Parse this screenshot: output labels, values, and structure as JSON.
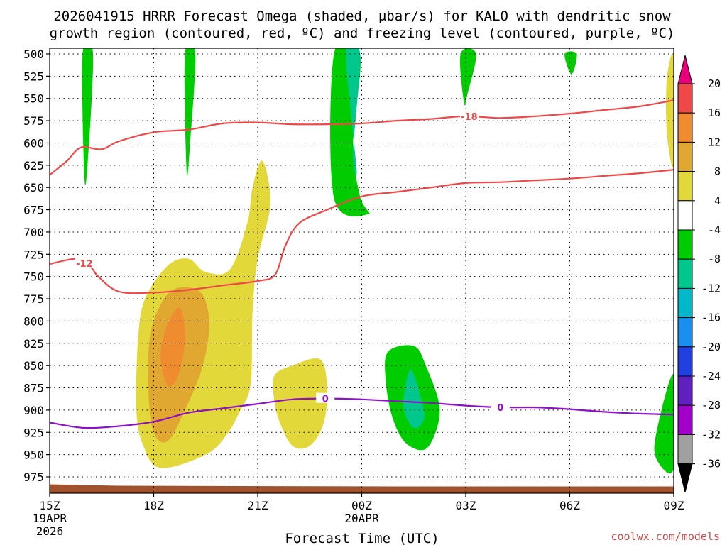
{
  "chart_data": {
    "type": "time-height contour",
    "title_line1": "2026041915 HRRR Forecast Omega (shaded, μbar/s) for KALO with dendritic snow",
    "title_line2": "growth region (contoured, red, ºC) and freezing level (contoured, purple, ºC)",
    "xlabel": "Forecast Time (UTC)",
    "credit": "coolwx.com/models",
    "x_range_hours": [
      0,
      18
    ],
    "x_ticks": [
      {
        "hour": 0,
        "label": "15Z",
        "sub1": "19APR",
        "sub2": "2026"
      },
      {
        "hour": 3,
        "label": "18Z",
        "sub1": "",
        "sub2": ""
      },
      {
        "hour": 6,
        "label": "21Z",
        "sub1": "",
        "sub2": ""
      },
      {
        "hour": 9,
        "label": "00Z",
        "sub1": "20APR",
        "sub2": ""
      },
      {
        "hour": 12,
        "label": "03Z",
        "sub1": "",
        "sub2": ""
      },
      {
        "hour": 15,
        "label": "06Z",
        "sub1": "",
        "sub2": ""
      },
      {
        "hour": 18,
        "label": "09Z",
        "sub1": "",
        "sub2": ""
      }
    ],
    "y_range_mb": [
      500,
      985
    ],
    "y_ticks": [
      "500",
      "525",
      "550",
      "575",
      "600",
      "625",
      "650",
      "675",
      "700",
      "725",
      "750",
      "775",
      "800",
      "825",
      "850",
      "875",
      "900",
      "925",
      "950",
      "975"
    ],
    "colorbar": {
      "levels": [
        "20",
        "16",
        "12",
        "8",
        "4",
        "-4",
        "-8",
        "-12",
        "-16",
        "-20",
        "-24",
        "-28",
        "-32",
        "-36"
      ],
      "colors": [
        "#e8007a",
        "#f04848",
        "#f08c30",
        "#e0a830",
        "#e2d83a",
        "#ffffff",
        "#00cc00",
        "#00c88c",
        "#00b8c8",
        "#1890f0",
        "#2040e0",
        "#6020c0",
        "#a000c8",
        "#a0a0a0",
        "#000000"
      ]
    },
    "shaded_regions": [
      {
        "name": "omega-negative-8-col1",
        "level": -8,
        "color": "#00cc00",
        "points": [
          [
            0.95,
            500
          ],
          [
            1.25,
            500
          ],
          [
            1.1,
            620
          ],
          [
            1.0,
            638
          ]
        ]
      },
      {
        "name": "omega-negative-8-col2",
        "level": -8,
        "color": "#00cc00",
        "points": [
          [
            3.9,
            500
          ],
          [
            4.2,
            500
          ],
          [
            4.05,
            600
          ],
          [
            3.95,
            632
          ]
        ]
      },
      {
        "name": "omega-negative-8-col3",
        "level": -8,
        "color": "#00cc00",
        "points": [
          [
            8.2,
            500
          ],
          [
            8.95,
            500
          ],
          [
            8.75,
            600
          ],
          [
            8.95,
            660
          ],
          [
            9.2,
            680
          ],
          [
            8.2,
            662
          ]
        ]
      },
      {
        "name": "omega-negative-12-col3",
        "level": -12,
        "color": "#00c88c",
        "points": [
          [
            8.55,
            500
          ],
          [
            8.95,
            500
          ],
          [
            8.75,
            610
          ],
          [
            8.85,
            628
          ]
        ]
      },
      {
        "name": "omega-negative-8-col4",
        "level": -8,
        "color": "#00cc00",
        "points": [
          [
            11.85,
            500
          ],
          [
            12.3,
            500
          ],
          [
            12.05,
            545
          ],
          [
            11.95,
            555
          ]
        ]
      },
      {
        "name": "omega-negative-8-col5",
        "level": -8,
        "color": "#00cc00",
        "points": [
          [
            14.85,
            500
          ],
          [
            15.2,
            500
          ],
          [
            15.05,
            523
          ]
        ]
      },
      {
        "name": "omega-negative-8-blob",
        "level": -8,
        "color": "#00cc00",
        "points": [
          [
            9.75,
            835
          ],
          [
            10.5,
            828
          ],
          [
            10.85,
            850
          ],
          [
            11.25,
            900
          ],
          [
            10.9,
            942
          ],
          [
            10.3,
            938
          ],
          [
            9.9,
            910
          ],
          [
            9.7,
            870
          ]
        ]
      },
      {
        "name": "omega-negative-12-blob",
        "level": -12,
        "color": "#00c88c",
        "points": [
          [
            10.4,
            855
          ],
          [
            10.7,
            885
          ],
          [
            10.8,
            910
          ],
          [
            10.5,
            920
          ],
          [
            10.2,
            895
          ]
        ]
      },
      {
        "name": "omega-negative-8-corner",
        "level": -8,
        "color": "#00cc00",
        "points": [
          [
            18.0,
            860
          ],
          [
            18.0,
            965
          ],
          [
            17.5,
            955
          ],
          [
            17.5,
            925
          ]
        ]
      },
      {
        "name": "omega-positive-4-main",
        "level": 4,
        "color": "#e2d83a",
        "points": [
          [
            6.1,
            620
          ],
          [
            6.3,
            640
          ],
          [
            6.35,
            675
          ],
          [
            6.0,
            730
          ],
          [
            5.85,
            790
          ],
          [
            5.8,
            870
          ],
          [
            5.5,
            900
          ],
          [
            5.1,
            928
          ],
          [
            4.5,
            950
          ],
          [
            3.2,
            965
          ],
          [
            2.7,
            940
          ],
          [
            2.5,
            900
          ],
          [
            2.55,
            820
          ],
          [
            2.75,
            775
          ],
          [
            3.4,
            738
          ],
          [
            4.0,
            730
          ],
          [
            4.5,
            745
          ],
          [
            5.2,
            742
          ],
          [
            5.7,
            690
          ],
          [
            5.85,
            650
          ]
        ]
      },
      {
        "name": "omega-positive-8-main",
        "level": 8,
        "color": "#e0a830",
        "points": [
          [
            2.85,
            880
          ],
          [
            2.9,
            815
          ],
          [
            3.3,
            775
          ],
          [
            3.8,
            762
          ],
          [
            4.4,
            770
          ],
          [
            4.6,
            805
          ],
          [
            4.4,
            852
          ],
          [
            3.9,
            900
          ],
          [
            3.4,
            935
          ],
          [
            3.0,
            925
          ]
        ]
      },
      {
        "name": "omega-positive-12-main",
        "level": 12,
        "color": "#f08c30",
        "points": [
          [
            3.2,
            842
          ],
          [
            3.35,
            808
          ],
          [
            3.75,
            785
          ],
          [
            3.9,
            820
          ],
          [
            3.7,
            862
          ],
          [
            3.4,
            872
          ]
        ]
      },
      {
        "name": "omega-positive-4-small",
        "level": 4,
        "color": "#e2d83a",
        "points": [
          [
            6.5,
            860
          ],
          [
            7.0,
            850
          ],
          [
            7.8,
            843
          ],
          [
            8.0,
            875
          ],
          [
            7.9,
            915
          ],
          [
            7.5,
            940
          ],
          [
            7.0,
            940
          ],
          [
            6.6,
            910
          ],
          [
            6.45,
            880
          ]
        ]
      },
      {
        "name": "omega-positive-4-right",
        "level": 4,
        "color": "#e2d83a",
        "points": [
          [
            17.8,
            528
          ],
          [
            18.0,
            505
          ],
          [
            18.0,
            625
          ],
          [
            17.8,
            588
          ]
        ]
      }
    ],
    "contours": [
      {
        "name": "dgz-minus18-line",
        "value": -18,
        "label": "-18",
        "color": "#f04848",
        "label_hour": 12.1,
        "points": [
          [
            0,
            636
          ],
          [
            0.5,
            620
          ],
          [
            0.9,
            605
          ],
          [
            1.5,
            607
          ],
          [
            2.0,
            598
          ],
          [
            3.0,
            588
          ],
          [
            4.0,
            585
          ],
          [
            5.0,
            578
          ],
          [
            6.0,
            577
          ],
          [
            7.0,
            579
          ],
          [
            8.0,
            579
          ],
          [
            9.0,
            578
          ],
          [
            10.0,
            575
          ],
          [
            11.0,
            573
          ],
          [
            12.0,
            570
          ],
          [
            13.0,
            572
          ],
          [
            14.0,
            570
          ],
          [
            15.0,
            567
          ],
          [
            16.0,
            563
          ],
          [
            17.0,
            559
          ],
          [
            18.0,
            552
          ]
        ]
      },
      {
        "name": "dgz-minus12-line",
        "value": -12,
        "label": "-12",
        "color": "#f04848",
        "label_hour": 1.0,
        "points": [
          [
            0,
            736
          ],
          [
            0.8,
            730
          ],
          [
            1.2,
            740
          ],
          [
            1.4,
            750
          ],
          [
            2.0,
            767
          ],
          [
            3.0,
            768
          ],
          [
            4.0,
            765
          ],
          [
            5.0,
            760
          ],
          [
            6.0,
            755
          ],
          [
            6.5,
            748
          ],
          [
            6.8,
            715
          ],
          [
            7.2,
            690
          ],
          [
            8.0,
            675
          ],
          [
            9.0,
            660
          ],
          [
            10.0,
            655
          ],
          [
            11.0,
            650
          ],
          [
            12.0,
            645
          ],
          [
            13.0,
            644
          ],
          [
            14.0,
            642
          ],
          [
            15.0,
            640
          ],
          [
            16.0,
            637
          ],
          [
            17.0,
            634
          ],
          [
            18.0,
            630
          ]
        ]
      },
      {
        "name": "freezing-level-line",
        "value": 0,
        "label": "0",
        "color": "#9010c8",
        "label_hour": 7.95,
        "label_hour2": 13.0,
        "points": [
          [
            0,
            914
          ],
          [
            1,
            920
          ],
          [
            2,
            918
          ],
          [
            3,
            913
          ],
          [
            4,
            903
          ],
          [
            5,
            898
          ],
          [
            6,
            893
          ],
          [
            7,
            888
          ],
          [
            8,
            887
          ],
          [
            9,
            888
          ],
          [
            10,
            890
          ],
          [
            11,
            892
          ],
          [
            12,
            895
          ],
          [
            13,
            897
          ],
          [
            14,
            897
          ],
          [
            15,
            899
          ],
          [
            16,
            902
          ],
          [
            17,
            904
          ],
          [
            18,
            905
          ]
        ]
      }
    ],
    "terrain": {
      "color": "#a0522d",
      "top_mb": 985
    }
  }
}
